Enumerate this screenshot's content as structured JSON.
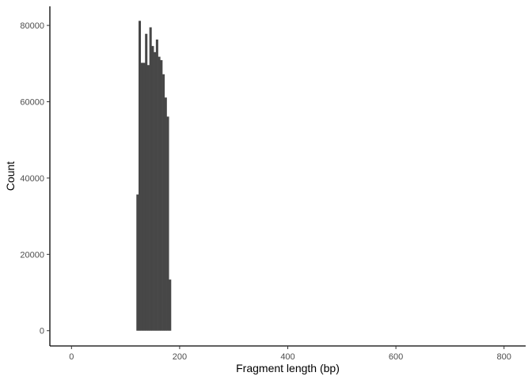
{
  "chart_data": {
    "type": "bar",
    "xlabel": "Fragment length (bp)",
    "ylabel": "Count",
    "xlim": [
      -40,
      840
    ],
    "ylim": [
      -4000,
      85000
    ],
    "xticks": [
      0,
      200,
      400,
      600,
      800
    ],
    "xtick_labels": [
      "0",
      "200",
      "400",
      "600",
      "800"
    ],
    "yticks": [
      0,
      20000,
      40000,
      60000,
      80000
    ],
    "ytick_labels": [
      "0",
      "20000",
      "40000",
      "60000",
      "80000"
    ],
    "bin_width": 4,
    "bins": [
      {
        "x": 122,
        "y": 35700
      },
      {
        "x": 126,
        "y": 81200
      },
      {
        "x": 130,
        "y": 70200
      },
      {
        "x": 134,
        "y": 70200
      },
      {
        "x": 138,
        "y": 77800
      },
      {
        "x": 142,
        "y": 69600
      },
      {
        "x": 146,
        "y": 79500
      },
      {
        "x": 150,
        "y": 74600
      },
      {
        "x": 154,
        "y": 73000
      },
      {
        "x": 158,
        "y": 76300
      },
      {
        "x": 162,
        "y": 71800
      },
      {
        "x": 166,
        "y": 70900
      },
      {
        "x": 170,
        "y": 67200
      },
      {
        "x": 174,
        "y": 61100
      },
      {
        "x": 178,
        "y": 56100
      },
      {
        "x": 182,
        "y": 13400
      }
    ],
    "bar_color": "#474747",
    "grid": false,
    "legend": "none"
  }
}
